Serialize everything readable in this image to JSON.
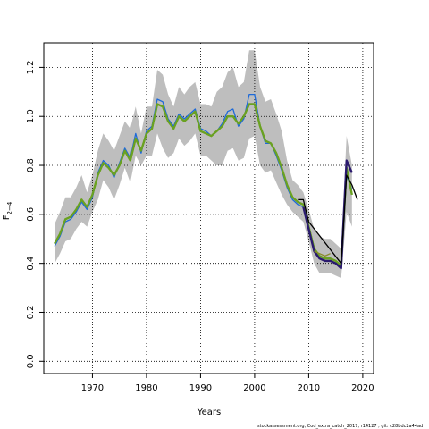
{
  "footer_text": "stockassessment.org, Cod_extra_catch_2017, r14127 , git: c28bdc2a44ad",
  "chart_data": {
    "type": "line",
    "xlabel": "Years",
    "ylabel_main": "F",
    "ylabel_sub": "2−4",
    "xlim": [
      1961,
      2022
    ],
    "ylim": [
      -0.05,
      1.3
    ],
    "xticks": [
      1970,
      1980,
      1990,
      2000,
      2010,
      2020
    ],
    "xtick_labels": [
      "1970",
      "1980",
      "1990",
      "2000",
      "2010",
      "2020"
    ],
    "yticks": [
      0.0,
      0.2,
      0.4,
      0.6,
      0.8,
      1.0,
      1.2
    ],
    "ytick_labels": [
      "0.0",
      "0.2",
      "0.4",
      "0.6",
      "0.8",
      "1.0",
      "1.2"
    ],
    "grid": true,
    "colors": {
      "band": "#bebebe",
      "green": "#6aa121",
      "blue": "#1e6ad8",
      "navy": "#2a1a6e",
      "olive": "#8a8a2a",
      "black": "#000000"
    },
    "band": {
      "x": [
        1963,
        1964,
        1965,
        1966,
        1967,
        1968,
        1969,
        1970,
        1971,
        1972,
        1973,
        1974,
        1975,
        1976,
        1977,
        1978,
        1979,
        1980,
        1981,
        1982,
        1983,
        1984,
        1985,
        1986,
        1987,
        1988,
        1989,
        1990,
        1991,
        1992,
        1993,
        1994,
        1995,
        1996,
        1997,
        1998,
        1999,
        2000,
        2001,
        2002,
        2003,
        2004,
        2005,
        2006,
        2007,
        2008,
        2009,
        2010,
        2011,
        2012,
        2013,
        2014,
        2015,
        2016,
        2017,
        2018
      ],
      "upper": [
        0.56,
        0.61,
        0.67,
        0.67,
        0.71,
        0.76,
        0.69,
        0.76,
        0.86,
        0.93,
        0.9,
        0.86,
        0.92,
        0.98,
        0.95,
        1.04,
        0.93,
        1.04,
        1.04,
        1.19,
        1.17,
        1.09,
        1.04,
        1.12,
        1.09,
        1.12,
        1.14,
        1.05,
        1.05,
        1.04,
        1.1,
        1.12,
        1.18,
        1.2,
        1.12,
        1.14,
        1.27,
        1.27,
        1.12,
        1.06,
        1.07,
        1.01,
        0.94,
        0.82,
        0.74,
        0.72,
        0.69,
        0.62,
        0.54,
        0.51,
        0.5,
        0.5,
        0.48,
        0.46,
        0.92,
        0.8
      ],
      "lower": [
        0.4,
        0.44,
        0.49,
        0.5,
        0.54,
        0.57,
        0.55,
        0.61,
        0.66,
        0.74,
        0.71,
        0.66,
        0.72,
        0.79,
        0.73,
        0.84,
        0.8,
        0.84,
        0.84,
        0.93,
        0.87,
        0.83,
        0.85,
        0.91,
        0.88,
        0.9,
        0.93,
        0.84,
        0.84,
        0.82,
        0.8,
        0.8,
        0.86,
        0.87,
        0.82,
        0.83,
        0.91,
        0.92,
        0.8,
        0.77,
        0.78,
        0.73,
        0.68,
        0.64,
        0.61,
        0.59,
        0.57,
        0.49,
        0.4,
        0.36,
        0.36,
        0.36,
        0.35,
        0.34,
        0.61,
        0.55
      ]
    },
    "series": [
      {
        "color": "green",
        "x": [
          1963,
          1964,
          1965,
          1966,
          1967,
          1968,
          1969,
          1970,
          1971,
          1972,
          1973,
          1974,
          1975,
          1976,
          1977,
          1978,
          1979,
          1980,
          1981,
          1982,
          1983,
          1984,
          1985,
          1986,
          1987,
          1988,
          1989,
          1990,
          1991,
          1992,
          1993,
          1994,
          1995,
          1996,
          1997,
          1998,
          1999,
          2000,
          2001,
          2002,
          2003,
          2004,
          2005,
          2006,
          2007,
          2008,
          2009,
          2010,
          2011,
          2012,
          2013,
          2014,
          2015,
          2016,
          2017,
          2018
        ],
        "y": [
          0.48,
          0.52,
          0.58,
          0.59,
          0.62,
          0.66,
          0.63,
          0.68,
          0.76,
          0.81,
          0.79,
          0.76,
          0.8,
          0.86,
          0.82,
          0.91,
          0.86,
          0.93,
          0.95,
          1.05,
          1.04,
          0.98,
          0.95,
          1.0,
          0.98,
          1.0,
          1.02,
          0.94,
          0.93,
          0.92,
          0.94,
          0.96,
          1.0,
          1.0,
          0.97,
          1.0,
          1.05,
          1.05,
          0.96,
          0.9,
          0.89,
          0.85,
          0.79,
          0.72,
          0.67,
          0.65,
          0.64,
          0.55,
          0.46,
          0.43,
          0.42,
          0.42,
          0.41,
          0.39,
          0.79,
          0.68
        ]
      },
      {
        "color": "blue",
        "x": [
          1963,
          1964,
          1965,
          1966,
          1967,
          1968,
          1969,
          1970,
          1971,
          1972,
          1973,
          1974,
          1975,
          1976,
          1977,
          1978,
          1979,
          1980,
          1981,
          1982,
          1983,
          1984,
          1985,
          1986,
          1987,
          1988,
          1989,
          1990,
          1991,
          1992,
          1993,
          1994,
          1995,
          1996,
          1997,
          1998,
          1999,
          2000,
          2001,
          2002,
          2003,
          2004,
          2005,
          2006,
          2007,
          2008,
          2009,
          2010,
          2011,
          2012,
          2013,
          2014,
          2015,
          2016,
          2017,
          2018
        ],
        "y": [
          0.47,
          0.51,
          0.57,
          0.58,
          0.61,
          0.65,
          0.62,
          0.67,
          0.77,
          0.82,
          0.8,
          0.75,
          0.81,
          0.87,
          0.83,
          0.93,
          0.85,
          0.94,
          0.96,
          1.07,
          1.06,
          0.99,
          0.96,
          1.01,
          0.99,
          1.01,
          1.03,
          0.95,
          0.94,
          0.92,
          0.94,
          0.97,
          1.02,
          1.03,
          0.96,
          0.99,
          1.09,
          1.09,
          0.96,
          0.89,
          0.89,
          0.84,
          0.78,
          0.71,
          0.66,
          0.64,
          0.63,
          0.54,
          0.45,
          0.42,
          0.41,
          0.41,
          0.4,
          0.38,
          0.76,
          0.7
        ]
      },
      {
        "color": "navy",
        "x": [
          2009,
          2010,
          2011,
          2012,
          2013,
          2014,
          2015,
          2016,
          2017,
          2018
        ],
        "y": [
          0.63,
          0.54,
          0.45,
          0.42,
          0.41,
          0.41,
          0.4,
          0.38,
          0.82,
          0.77
        ]
      },
      {
        "color": "olive",
        "x": [
          2011,
          2012,
          2013,
          2014
        ],
        "y": [
          0.45,
          0.44,
          0.43,
          0.44
        ]
      },
      {
        "color": "black",
        "x": [
          2008,
          2009,
          2010,
          2016,
          2017,
          2018,
          2019
        ],
        "y": [
          0.66,
          0.66,
          0.57,
          0.4,
          0.76,
          0.72,
          0.66
        ]
      }
    ]
  }
}
